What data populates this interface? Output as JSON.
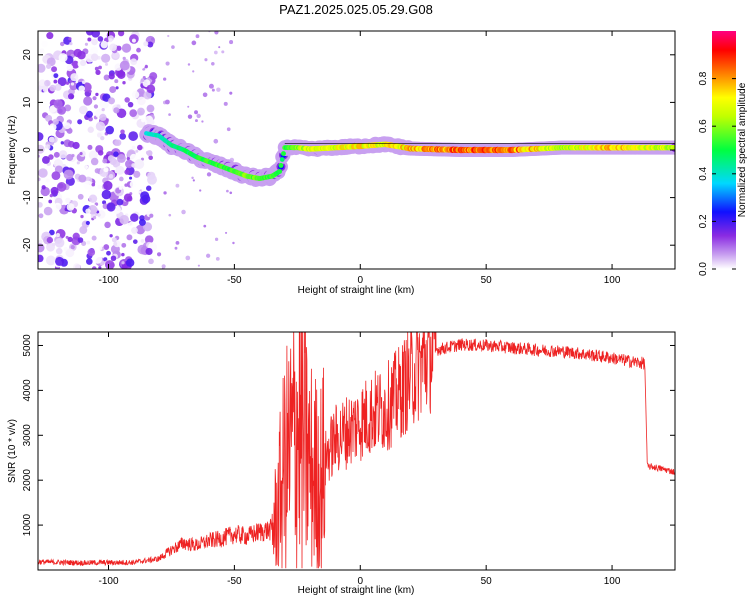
{
  "title": "PAZ1.2025.025.05.29.G08",
  "chart_data": [
    {
      "type": "heatmap",
      "xlabel": "Height of straight line (km)",
      "ylabel": "Frequency (Hz)",
      "xlim": [
        -128,
        125
      ],
      "ylim": [
        -25,
        25
      ],
      "xticks": [
        -100,
        -50,
        0,
        50,
        100
      ],
      "yticks": [
        -20,
        -10,
        0,
        10,
        20
      ],
      "colorbar": {
        "label": "Normalized spectral amplitude",
        "range": [
          0,
          1
        ],
        "ticks": [
          0.0,
          0.2,
          0.4,
          0.6,
          0.8
        ],
        "colormap": [
          "#ffffff",
          "#8a2be2",
          "#0000ff",
          "#00d8ff",
          "#00ff00",
          "#ffff00",
          "#ff8000",
          "#ff0000",
          "#ff0080"
        ]
      },
      "noise_region_x": [
        -128,
        -80
      ],
      "ridge": {
        "x": [
          -85,
          -80,
          -75,
          -70,
          -65,
          -60,
          -55,
          -50,
          -45,
          -40,
          -35,
          -32,
          -30,
          -25,
          -20,
          -10,
          0,
          5,
          10,
          20,
          40,
          60,
          80,
          100,
          125
        ],
        "y": [
          3.5,
          3,
          1,
          0,
          -1.5,
          -2.5,
          -3.5,
          -4.5,
          -5.5,
          -6,
          -5.5,
          -4.5,
          0.5,
          0.5,
          0.2,
          0.5,
          0.8,
          1,
          1.2,
          0.3,
          0,
          0,
          0.5,
          0.5,
          0.5
        ],
        "amp": [
          0.15,
          0.2,
          0.25,
          0.3,
          0.35,
          0.4,
          0.4,
          0.45,
          0.5,
          0.45,
          0.4,
          0.35,
          0.4,
          0.5,
          0.7,
          0.7,
          0.75,
          0.7,
          0.7,
          0.8,
          0.95,
          0.95,
          0.6,
          0.8,
          0.6
        ]
      }
    },
    {
      "type": "line",
      "xlabel": "Height of straight line (km)",
      "ylabel": "SNR (10 * v/v)",
      "xlim": [
        -128,
        125
      ],
      "ylim": [
        0,
        5300
      ],
      "xticks": [
        -100,
        -50,
        0,
        50,
        100
      ],
      "yticks": [
        1000,
        2000,
        3000,
        4000,
        5000
      ],
      "color": "#ee2222",
      "series": [
        {
          "x": [
            -128,
            -110,
            -90,
            -80,
            -75,
            -70,
            -65,
            -60,
            -55,
            -50,
            -45,
            -40,
            -35,
            -33,
            -30,
            -27,
            -25,
            -22,
            -20,
            -16,
            -13,
            -10,
            -5,
            0,
            5,
            10,
            15,
            20,
            25,
            30,
            40,
            50,
            60,
            70,
            80,
            90,
            100,
            110,
            113,
            114,
            116,
            120,
            125
          ],
          "y": [
            180,
            160,
            170,
            250,
            450,
            600,
            550,
            650,
            700,
            800,
            750,
            850,
            900,
            1300,
            2300,
            2800,
            3200,
            2800,
            2300,
            2000,
            2600,
            2900,
            3100,
            3300,
            3500,
            3600,
            3900,
            4300,
            4650,
            4900,
            5020,
            5000,
            4950,
            4900,
            4870,
            4800,
            4720,
            4620,
            4600,
            2300,
            2300,
            2250,
            2180
          ]
        }
      ]
    }
  ]
}
